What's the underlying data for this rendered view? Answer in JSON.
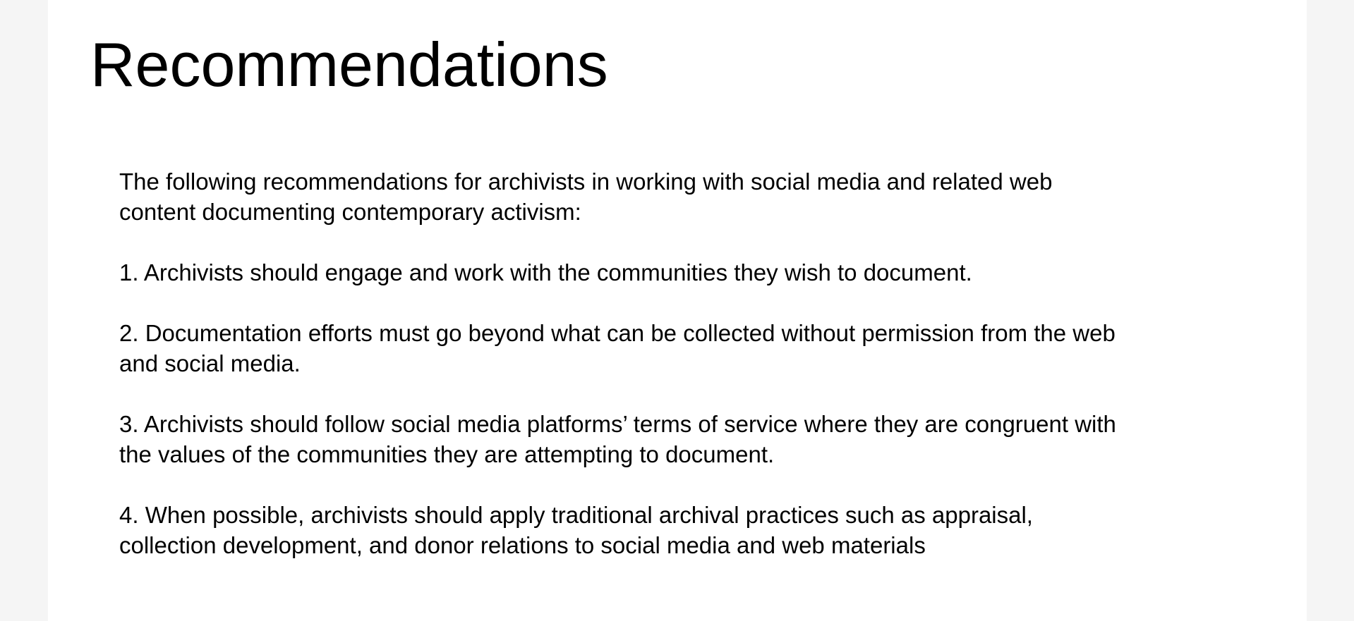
{
  "slide": {
    "title": "Recommendations",
    "paragraphs": [
      "The following recommendations for archivists in working with social media and related web content documenting contemporary activism:",
      "1. Archivists should engage and work with the communities they wish to document.",
      "2. Documentation efforts must go beyond what can be collected without permission from the web and social media.",
      "3. Archivists should follow social media platforms’ terms of service where they are congruent with the values of the communities they are attempting to document.",
      "4. When possible, archivists should apply traditional archival practices such as appraisal, collection development, and donor relations to social media and web materials"
    ]
  }
}
